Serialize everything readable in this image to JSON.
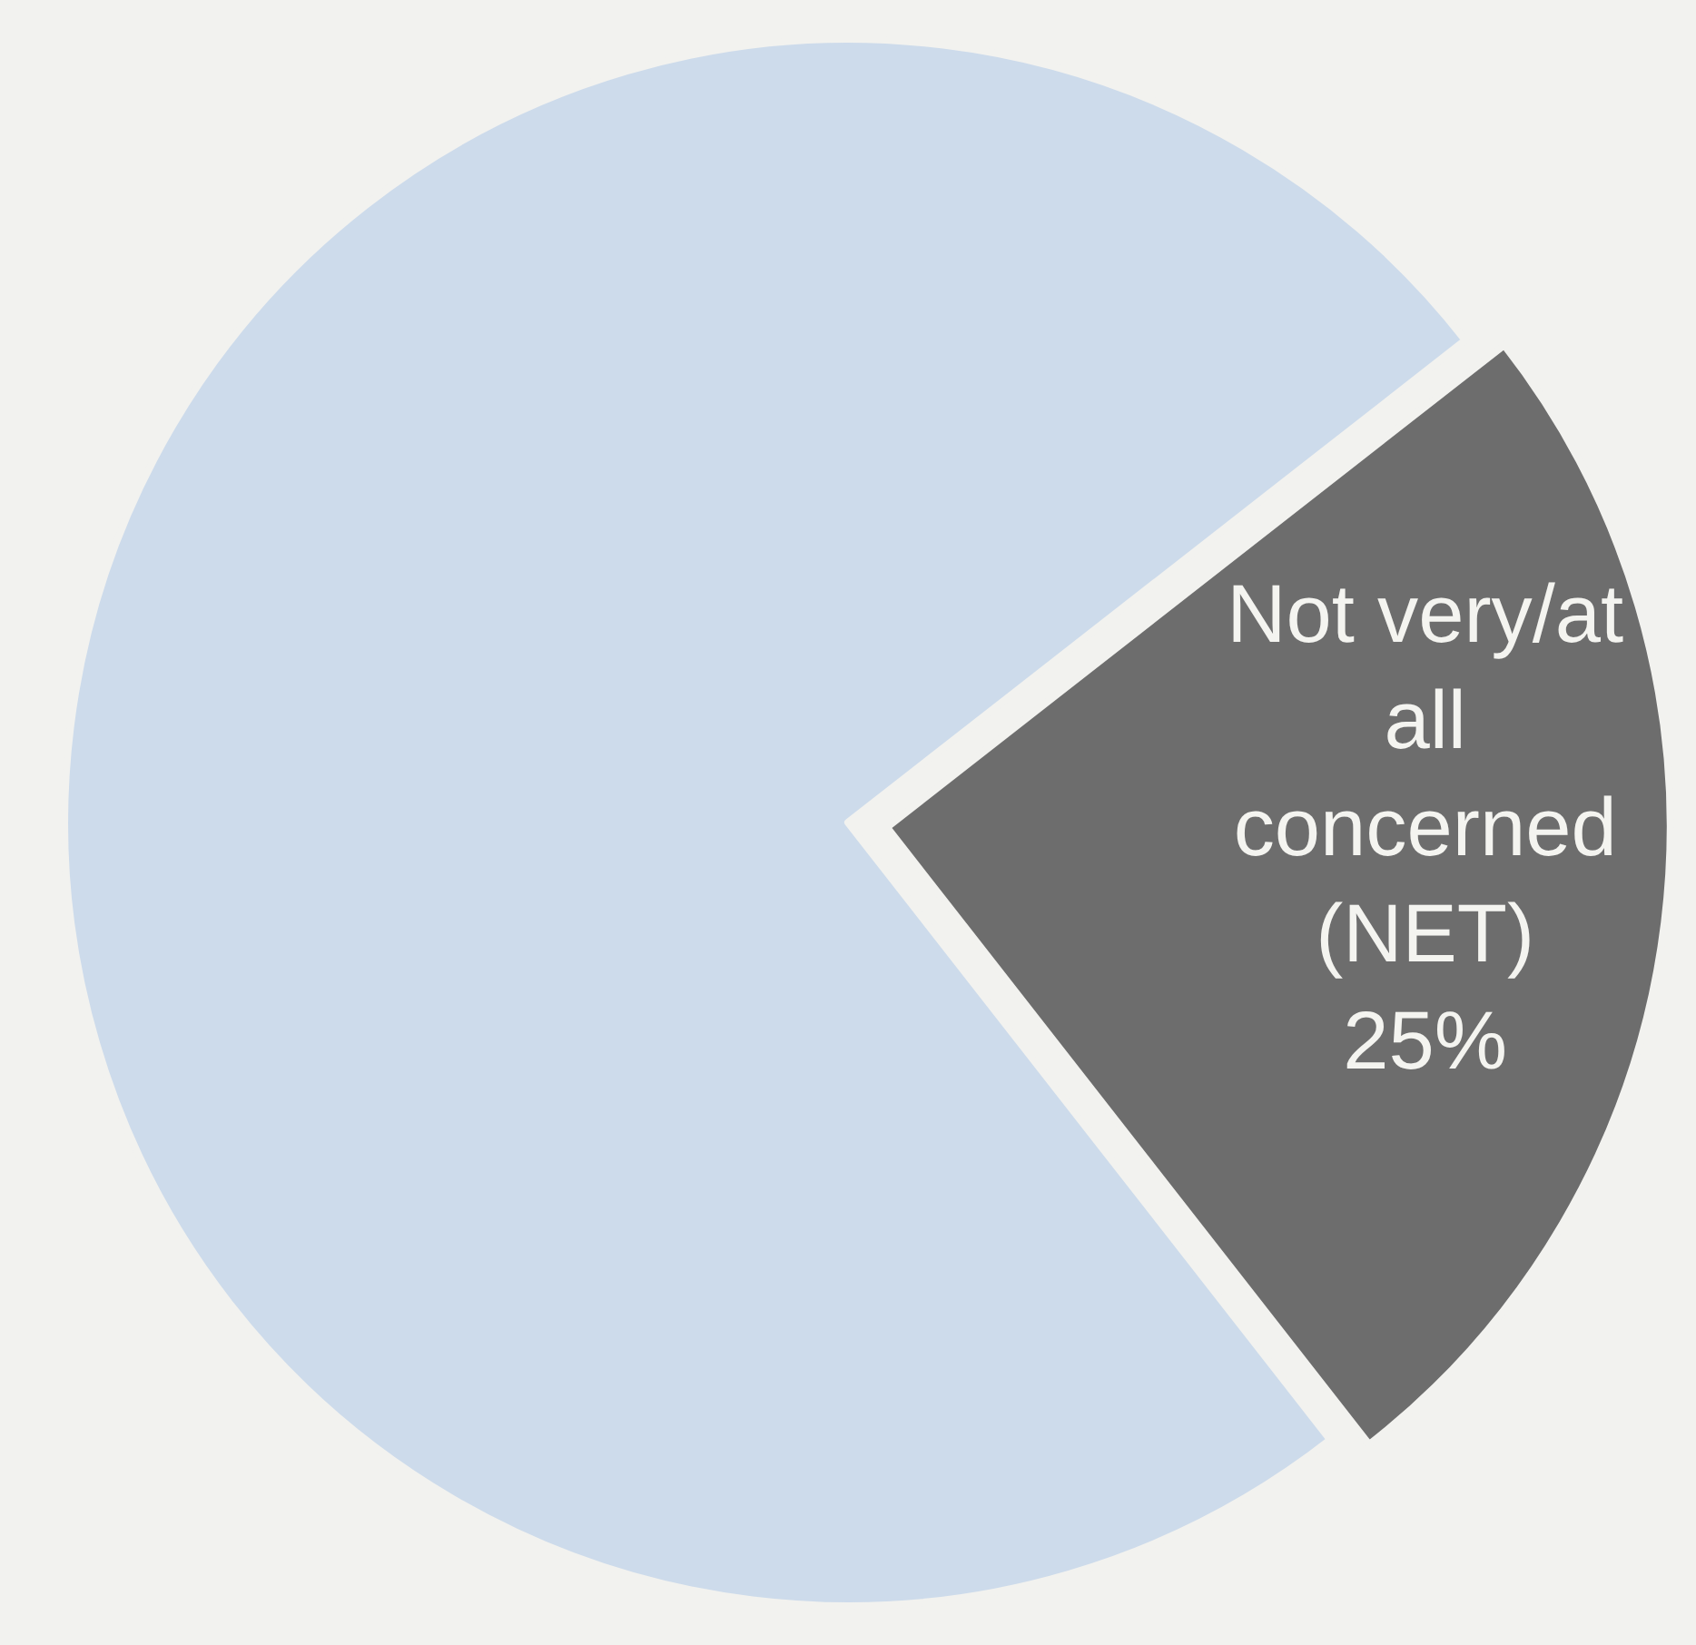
{
  "chart_data": {
    "type": "pie",
    "categories": [
      null,
      "Not very/at all concerned (NET)"
    ],
    "values": [
      75,
      25
    ],
    "colors": [
      "#cddbeb",
      "#6d6d6d"
    ],
    "value_labels": [
      null,
      "25%"
    ],
    "legend": false
  }
}
